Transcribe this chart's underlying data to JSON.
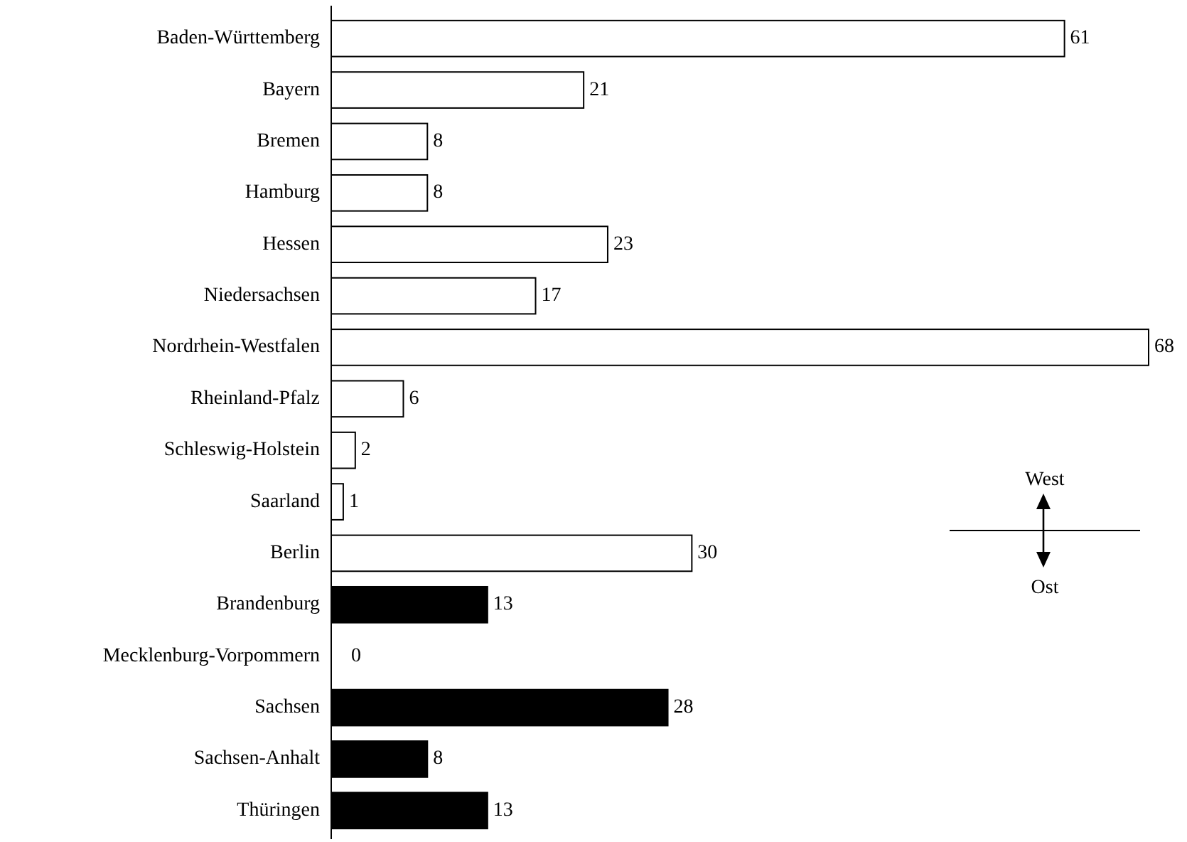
{
  "chart_data": {
    "type": "bar",
    "orientation": "horizontal",
    "data_labels": true,
    "categories": [
      "Baden-Württemberg",
      "Bayern",
      "Bremen",
      "Hamburg",
      "Hessen",
      "Niedersachsen",
      "Nordrhein-Westfalen",
      "Rheinland-Pfalz",
      "Schleswig-Holstein",
      "Saarland",
      "Berlin",
      "Brandenburg",
      "Mecklenburg-Vorpommern",
      "Sachsen",
      "Sachsen-Anhalt",
      "Thüringen"
    ],
    "values": [
      61,
      21,
      8,
      8,
      23,
      17,
      68,
      6,
      2,
      1,
      30,
      13,
      0,
      28,
      8,
      13
    ],
    "colors": [
      "#ffffff",
      "#ffffff",
      "#ffffff",
      "#ffffff",
      "#ffffff",
      "#ffffff",
      "#ffffff",
      "#ffffff",
      "#ffffff",
      "#ffffff",
      "#ffffff",
      "#000000",
      "#000000",
      "#000000",
      "#000000",
      "#000000"
    ],
    "annotations": [
      "West",
      "Ost"
    ]
  }
}
